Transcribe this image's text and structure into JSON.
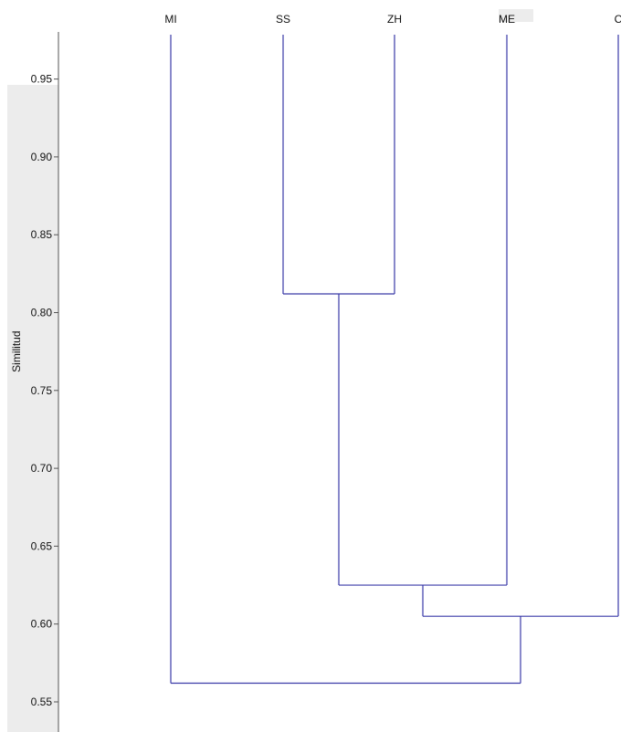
{
  "chart_data": {
    "type": "dendrogram",
    "ylabel": "Similitud",
    "ylim": [
      0.55,
      1.0
    ],
    "yticks": [
      "0.95",
      "0.90",
      "0.85",
      "0.80",
      "0.75",
      "0.70",
      "0.65",
      "0.60",
      "0.55"
    ],
    "leaves": [
      "MI",
      "SS",
      "ZH",
      "ME",
      "C"
    ],
    "merges": [
      {
        "left": "SS",
        "right": "ZH",
        "similarity": 0.812
      },
      {
        "left": "SS+ZH",
        "right": "ME",
        "similarity": 0.625
      },
      {
        "left": "SS+ZH+ME",
        "right": "C",
        "similarity": 0.605
      },
      {
        "left": "MI",
        "right": "SS+ZH+ME+C",
        "similarity": 0.562
      }
    ],
    "line_color": "#3a3aa8"
  }
}
